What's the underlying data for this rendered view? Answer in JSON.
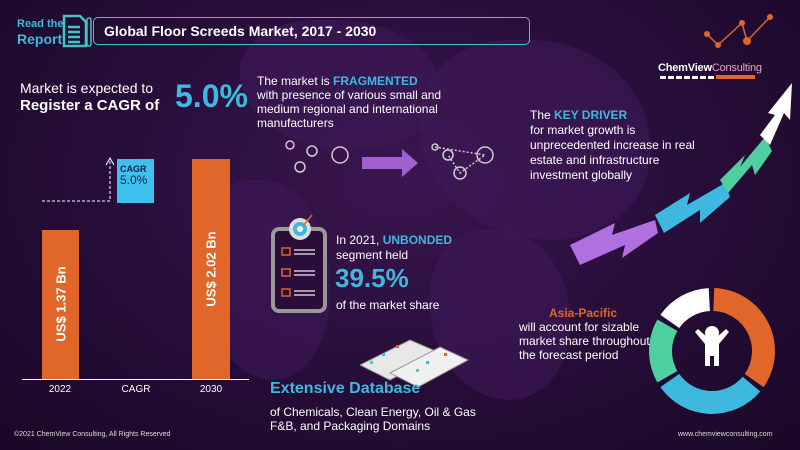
{
  "header": {
    "read_line1": "Read the",
    "read_line2": "Report",
    "title": "Global Floor Screeds Market, 2017  - 2030"
  },
  "cagr": {
    "line1": "Market is expected to",
    "line2": "Register a CAGR of",
    "value": "5.0%"
  },
  "fragmented": {
    "prefix": "The market is ",
    "highlight": "FRAGMENTED",
    "rest": "with presence of various small and medium regional and international manufacturers"
  },
  "chart_data": {
    "type": "bar",
    "categories": [
      "2022",
      "CAGR",
      "2030"
    ],
    "values": [
      1.37,
      null,
      2.02
    ],
    "data_labels": [
      "US$ 1.37 Bn",
      "",
      "US$ 2.02 Bn"
    ],
    "annotation": {
      "label": "CAGR",
      "value": "5.0%"
    }
  },
  "segment": {
    "prefix": "In 2021, ",
    "highlight": "UNBONDED",
    "line2": "segment held",
    "value": "39.5%",
    "line3": "of the market share"
  },
  "database": {
    "title": "Extensive Database",
    "line1": "of Chemicals, Clean Energy, Oil & Gas",
    "line2": "F&B, and Packaging Domains"
  },
  "driver": {
    "prefix": "The ",
    "highlight": "KEY DRIVER",
    "rest": "for market growth is unprecedented increase in real estate and infrastructure investment globally"
  },
  "region": {
    "title": "Asia-Pacific",
    "text": "will account for sizable market share throughout the forecast period"
  },
  "logo": {
    "chem": "Chem",
    "view": "View",
    "consulting": "Consulting"
  },
  "footer": {
    "copyright": "©2021  ChemView  Consulting,  All Rights Reserved",
    "url": "www.chemviewconsulting.com"
  },
  "colors": {
    "accent_blue": "#3fb8e0",
    "orange": "#e0662a",
    "teal": "#3fc6c0",
    "green": "#4fcfa0",
    "purple": "#a060d0"
  }
}
